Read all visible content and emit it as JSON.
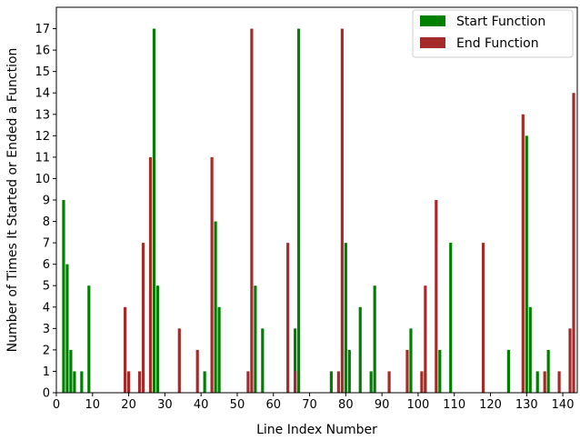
{
  "chart_data": {
    "type": "bar",
    "xlabel": "Line Index Number",
    "ylabel": "Number of Times It Started or Ended a Function",
    "xlim": [
      0,
      144
    ],
    "ylim": [
      0,
      18
    ],
    "x_ticks": [
      0,
      10,
      20,
      30,
      40,
      50,
      60,
      70,
      80,
      90,
      100,
      110,
      120,
      130,
      140
    ],
    "y_ticks": [
      0,
      1,
      2,
      3,
      4,
      5,
      6,
      7,
      8,
      9,
      10,
      11,
      12,
      13,
      14,
      15,
      16,
      17
    ],
    "grid": false,
    "legend_position": "top-right",
    "series": [
      {
        "name": "Start Function",
        "color": "#008000",
        "points": [
          {
            "x": 2,
            "y": 9
          },
          {
            "x": 3,
            "y": 6
          },
          {
            "x": 4,
            "y": 2
          },
          {
            "x": 5,
            "y": 1
          },
          {
            "x": 7,
            "y": 1
          },
          {
            "x": 9,
            "y": 5
          },
          {
            "x": 27,
            "y": 17
          },
          {
            "x": 28,
            "y": 5
          },
          {
            "x": 41,
            "y": 1
          },
          {
            "x": 44,
            "y": 8
          },
          {
            "x": 45,
            "y": 4
          },
          {
            "x": 55,
            "y": 5
          },
          {
            "x": 57,
            "y": 3
          },
          {
            "x": 66,
            "y": 3
          },
          {
            "x": 67,
            "y": 17
          },
          {
            "x": 76,
            "y": 1
          },
          {
            "x": 80,
            "y": 7
          },
          {
            "x": 81,
            "y": 2
          },
          {
            "x": 84,
            "y": 4
          },
          {
            "x": 87,
            "y": 1
          },
          {
            "x": 88,
            "y": 5
          },
          {
            "x": 98,
            "y": 3
          },
          {
            "x": 102,
            "y": 1
          },
          {
            "x": 106,
            "y": 2
          },
          {
            "x": 109,
            "y": 7
          },
          {
            "x": 125,
            "y": 2
          },
          {
            "x": 130,
            "y": 12
          },
          {
            "x": 131,
            "y": 4
          },
          {
            "x": 133,
            "y": 1
          },
          {
            "x": 136,
            "y": 2
          }
        ]
      },
      {
        "name": "End Function",
        "color": "#A52A2A",
        "points": [
          {
            "x": 19,
            "y": 4
          },
          {
            "x": 20,
            "y": 1
          },
          {
            "x": 23,
            "y": 1
          },
          {
            "x": 24,
            "y": 7
          },
          {
            "x": 26,
            "y": 11
          },
          {
            "x": 34,
            "y": 3
          },
          {
            "x": 39,
            "y": 2
          },
          {
            "x": 43,
            "y": 11
          },
          {
            "x": 53,
            "y": 1
          },
          {
            "x": 54,
            "y": 17
          },
          {
            "x": 64,
            "y": 7
          },
          {
            "x": 66,
            "y": 1
          },
          {
            "x": 78,
            "y": 1
          },
          {
            "x": 79,
            "y": 17
          },
          {
            "x": 92,
            "y": 1
          },
          {
            "x": 97,
            "y": 2
          },
          {
            "x": 101,
            "y": 1
          },
          {
            "x": 102,
            "y": 5
          },
          {
            "x": 105,
            "y": 9
          },
          {
            "x": 118,
            "y": 7
          },
          {
            "x": 129,
            "y": 13
          },
          {
            "x": 135,
            "y": 1
          },
          {
            "x": 139,
            "y": 1
          },
          {
            "x": 142,
            "y": 3
          },
          {
            "x": 143,
            "y": 14
          }
        ]
      }
    ]
  }
}
